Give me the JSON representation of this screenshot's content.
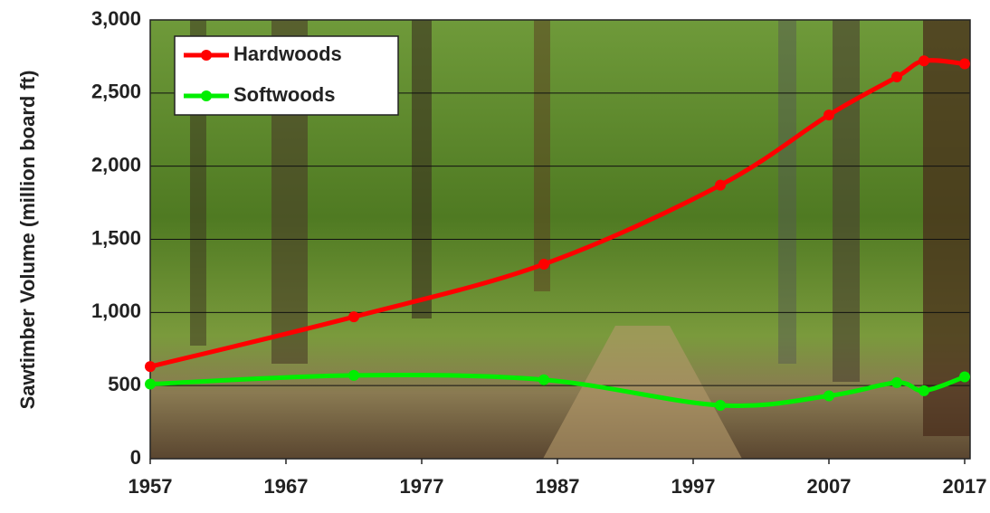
{
  "chart_data": {
    "type": "line",
    "y_label": "Sawtimber Volume (million board ft)",
    "x": [
      1957,
      1972,
      1986,
      1999,
      2007,
      2012,
      2014,
      2017
    ],
    "series": [
      {
        "name": "Hardwoods",
        "color": "#ff0000",
        "values": [
          630,
          970,
          1330,
          1870,
          2350,
          2610,
          2720,
          2700
        ]
      },
      {
        "name": "Softwoods",
        "color": "#00ee00",
        "values": [
          510,
          570,
          540,
          365,
          430,
          520,
          465,
          560
        ]
      }
    ],
    "xlim": [
      1957,
      2017.4
    ],
    "xticks": [
      1957,
      1967,
      1977,
      1987,
      1997,
      2007,
      2017
    ],
    "ylim": [
      0,
      3000
    ],
    "yticks": [
      0,
      500,
      {
        "value": 1000,
        "label": "1,000"
      },
      {
        "value": 1500,
        "label": "1,500"
      },
      {
        "value": 2000,
        "label": "2,000"
      },
      {
        "value": 2500,
        "label": "2,500"
      },
      {
        "value": 3000,
        "label": "3,000"
      }
    ],
    "grid": true,
    "legend": "upper left"
  }
}
